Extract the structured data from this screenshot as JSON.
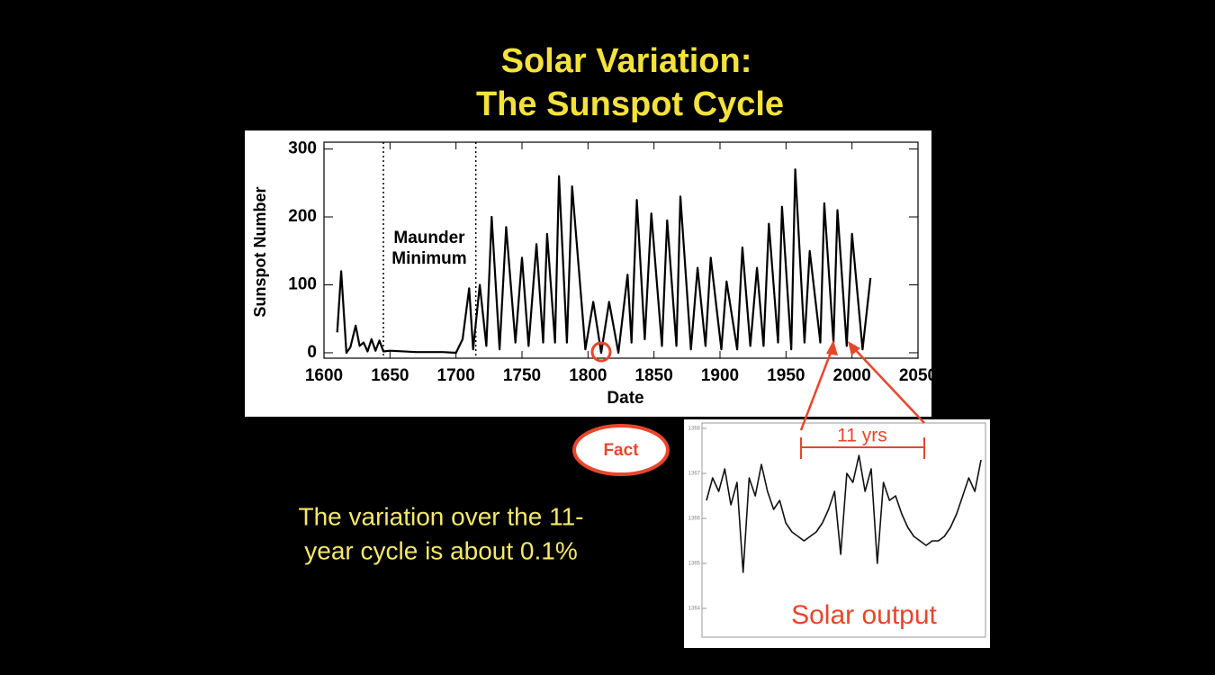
{
  "slide": {
    "title": [
      "Solar Variation:",
      "The Sunspot Cycle"
    ],
    "badge": "Fact",
    "caption": [
      "The variation over the 11-",
      "year cycle is about 0.1%"
    ]
  },
  "chart_data": [
    {
      "type": "line",
      "x_label": "Date",
      "y_label": "Sunspot Number",
      "annotation": [
        "Maunder",
        "Minimum"
      ],
      "markers": [
        1645,
        1715
      ],
      "highlight_x": 1810,
      "xlim": [
        1600,
        2050
      ],
      "xticks": [
        1600,
        1650,
        1700,
        1750,
        1800,
        1850,
        1900,
        1950,
        2000,
        2050
      ],
      "ylim": [
        -8,
        310
      ],
      "yticks": [
        0,
        100,
        200,
        300
      ],
      "series": [
        {
          "color": "#000000",
          "x": [
            1610,
            1613,
            1617,
            1620,
            1624,
            1627,
            1630,
            1633,
            1636,
            1639,
            1642,
            1645,
            1650,
            1670,
            1690,
            1700,
            1705,
            1710,
            1713,
            1718,
            1723,
            1727,
            1733,
            1738,
            1745,
            1750,
            1755,
            1761,
            1766,
            1769,
            1775,
            1778,
            1784,
            1788,
            1798,
            1804,
            1810,
            1816,
            1823,
            1830,
            1833,
            1837,
            1843,
            1848,
            1856,
            1860,
            1867,
            1870,
            1878,
            1883,
            1889,
            1893,
            1901,
            1905,
            1913,
            1917,
            1923,
            1928,
            1933,
            1937,
            1944,
            1947,
            1954,
            1957,
            1964,
            1968,
            1976,
            1979,
            1986,
            1989,
            1996,
            2000,
            2008,
            2014
          ],
          "values": [
            30,
            120,
            0,
            8,
            40,
            10,
            15,
            2,
            20,
            3,
            18,
            2,
            3,
            1,
            1,
            0,
            20,
            95,
            5,
            100,
            10,
            200,
            5,
            185,
            15,
            140,
            10,
            160,
            15,
            175,
            15,
            260,
            15,
            245,
            5,
            75,
            0,
            75,
            0,
            115,
            15,
            225,
            20,
            205,
            10,
            195,
            10,
            230,
            5,
            125,
            10,
            140,
            5,
            105,
            5,
            155,
            10,
            125,
            10,
            190,
            15,
            215,
            5,
            270,
            15,
            150,
            15,
            220,
            15,
            210,
            10,
            175,
            5,
            110
          ]
        }
      ]
    },
    {
      "type": "line",
      "annotation": [
        "11 yrs",
        "Solar output"
      ],
      "ylim": [
        1363.2,
        1368.2
      ],
      "yticks": [
        1364,
        1365,
        1366,
        1367,
        1368
      ],
      "series": [
        {
          "color": "#111111",
          "values": [
            1366.4,
            1366.9,
            1366.6,
            1367.1,
            1366.3,
            1366.8,
            1364.8,
            1366.9,
            1366.5,
            1367.2,
            1366.6,
            1366.2,
            1366.4,
            1365.9,
            1365.7,
            1365.6,
            1365.5,
            1365.6,
            1365.7,
            1365.9,
            1366.2,
            1366.6,
            1365.2,
            1367.0,
            1366.8,
            1367.4,
            1366.6,
            1367.1,
            1365.0,
            1366.8,
            1366.4,
            1366.5,
            1366.1,
            1365.8,
            1365.6,
            1365.5,
            1365.4,
            1365.5,
            1365.5,
            1365.6,
            1365.8,
            1366.1,
            1366.5,
            1366.9,
            1366.6,
            1367.3
          ]
        }
      ]
    }
  ]
}
